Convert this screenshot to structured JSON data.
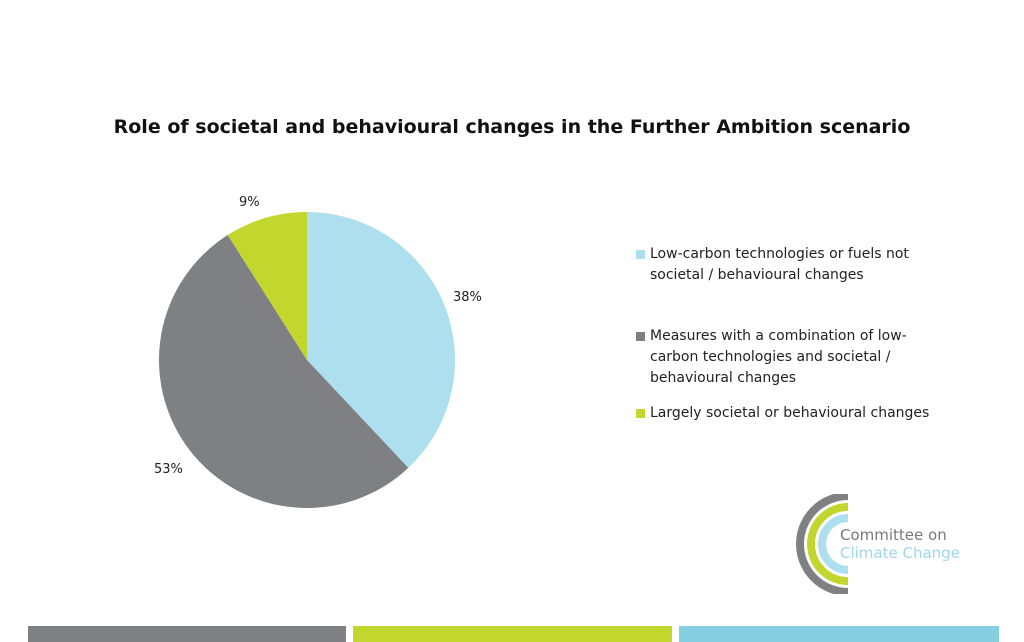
{
  "chart_data": {
    "type": "pie",
    "title": "Role of societal and behavioural changes in the Further Ambition scenario",
    "slices": [
      {
        "label": "Low-carbon technologies or fuels not societal / behavioural changes",
        "value": 38,
        "display": "38%",
        "color": "#aedfee"
      },
      {
        "label": "Measures with a combination of low-carbon technologies and societal / behavioural changes",
        "value": 53,
        "display": "53%",
        "color": "#7f8083"
      },
      {
        "label": "Largely societal or behavioural changes",
        "value": 9,
        "display": "9%",
        "color": "#c2d62e"
      }
    ],
    "legend_position": "right"
  },
  "logo": {
    "line1": "Committee on",
    "line2": "Climate Change"
  },
  "footer_colors": [
    "#7f8083",
    "#c2d62e",
    "#86cfe0"
  ]
}
